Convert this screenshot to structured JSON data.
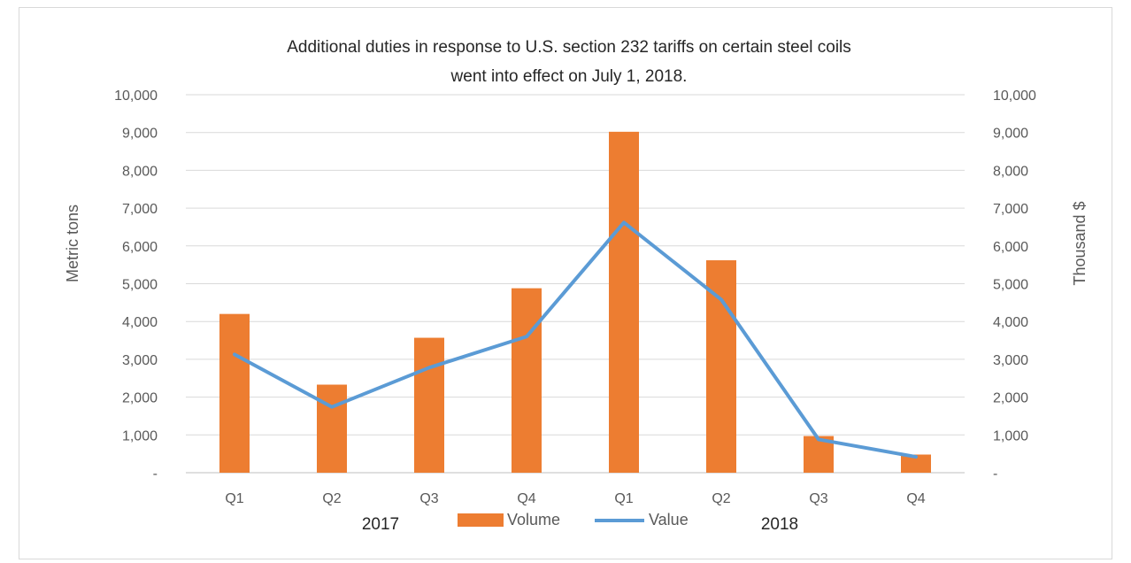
{
  "chart_data": {
    "type": "bar",
    "title": "Additional duties in response to U.S.  section 232 tariffs on certain steel coils",
    "subtitle": "went  into effect  on July 1, 2018.",
    "categories": [
      "Q1",
      "Q2",
      "Q3",
      "Q4",
      "Q1",
      "Q2",
      "Q3",
      "Q4"
    ],
    "groups": [
      "2017",
      "2018"
    ],
    "series": [
      {
        "name": "Volume",
        "type": "bar",
        "axis": "left",
        "color": "#ED7D31",
        "values": [
          4200,
          2330,
          3570,
          4880,
          9020,
          5620,
          970,
          480
        ]
      },
      {
        "name": "Value",
        "type": "line",
        "axis": "right",
        "color": "#5B9BD5",
        "values": [
          3130,
          1740,
          2780,
          3600,
          6620,
          4580,
          880,
          420
        ]
      }
    ],
    "ylabel": "Metric tons",
    "y2label": "Thousand $",
    "ylim": [
      0,
      10000
    ],
    "y2lim": [
      0,
      10000
    ],
    "ytick_labels": [
      "-",
      "1,000",
      "2,000",
      "3,000",
      "4,000",
      "5,000",
      "6,000",
      "7,000",
      "8,000",
      "9,000",
      "10,000"
    ],
    "grid": true,
    "legend": "bottom"
  }
}
